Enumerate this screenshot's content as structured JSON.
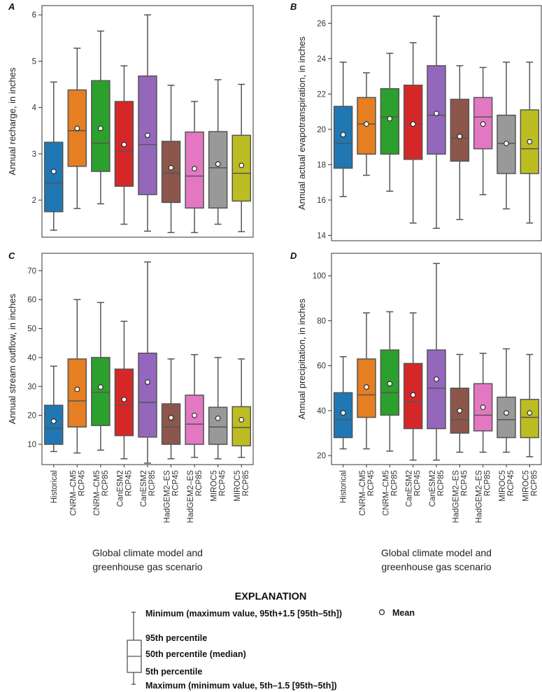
{
  "colors": [
    "#1f77b4",
    "#e67e22",
    "#2ca02c",
    "#d62728",
    "#9467bd",
    "#8c564b",
    "#e377c2",
    "#999999",
    "#bcbd22"
  ],
  "x_axis_label": [
    "Global climate model and",
    "greenhouse gas scenario"
  ],
  "chart_data": [
    {
      "type": "boxplot",
      "panel": "A",
      "ylabel": "Annual recharge, in inches",
      "ylim": [
        1.2,
        6.2
      ],
      "yticks": [
        2,
        3,
        4,
        5,
        6
      ],
      "categories": [
        "Historical",
        "CNRM–CM5 RCP45",
        "CNRM–CM5 RCP85",
        "CanESM2 RCP45",
        "CanESM2 RCP85",
        "HadGEM2–ES RCP45",
        "HadGEM2–ES RCP85",
        "MIROC5 RCP45",
        "MIROC5 RCP85"
      ],
      "whisker_low": [
        1.35,
        1.82,
        1.92,
        1.48,
        1.33,
        1.3,
        1.3,
        1.48,
        1.32
      ],
      "q_low": [
        1.75,
        2.73,
        2.62,
        2.3,
        2.12,
        1.95,
        1.83,
        1.83,
        1.98
      ],
      "median": [
        2.37,
        3.5,
        3.23,
        3.05,
        3.2,
        2.58,
        2.52,
        2.7,
        2.58
      ],
      "q_high": [
        3.25,
        4.38,
        4.58,
        4.13,
        4.68,
        3.27,
        3.47,
        3.48,
        3.4
      ],
      "whisker_high": [
        4.55,
        5.28,
        5.65,
        4.9,
        6.0,
        4.48,
        4.13,
        4.6,
        4.5
      ],
      "mean": [
        2.62,
        3.55,
        3.55,
        3.2,
        3.4,
        2.7,
        2.68,
        2.78,
        2.75
      ]
    },
    {
      "type": "boxplot",
      "panel": "B",
      "ylabel": "Annual actual evapotranspiration, in inches",
      "ylim": [
        13.7,
        27.0
      ],
      "yticks": [
        14,
        16,
        18,
        20,
        22,
        24,
        26
      ],
      "categories": [
        "Historical",
        "CNRM–CM5 RCP45",
        "CNRM–CM5 RCP85",
        "CanESM2 RCP45",
        "CanESM2 RCP85",
        "HadGEM2–ES RCP45",
        "HadGEM2–ES RCP85",
        "MIROC5 RCP45",
        "MIROC5 RCP85"
      ],
      "whisker_low": [
        16.2,
        17.4,
        16.5,
        14.7,
        14.4,
        14.9,
        16.3,
        15.5,
        14.7
      ],
      "q_low": [
        17.8,
        18.6,
        18.6,
        18.3,
        18.6,
        18.2,
        18.9,
        17.5,
        17.5
      ],
      "median": [
        19.2,
        20.3,
        20.7,
        20.3,
        20.8,
        19.5,
        20.7,
        19.2,
        18.9
      ],
      "q_high": [
        21.3,
        21.8,
        22.3,
        22.5,
        23.6,
        21.7,
        21.8,
        20.8,
        21.1
      ],
      "whisker_high": [
        23.8,
        23.2,
        24.3,
        24.9,
        26.4,
        23.6,
        23.5,
        23.8,
        23.8
      ],
      "mean": [
        19.7,
        20.3,
        20.6,
        20.3,
        20.9,
        19.6,
        20.3,
        19.2,
        19.3
      ]
    },
    {
      "type": "boxplot",
      "panel": "C",
      "ylabel": "Annual stream outflow, in inches",
      "ylim": [
        3.0,
        76.0
      ],
      "yticks": [
        10,
        20,
        30,
        40,
        50,
        60,
        70
      ],
      "categories": [
        "Historical",
        "CNRM–CM5 RCP45",
        "CNRM–CM5 RCP85",
        "CanESM2 RCP45",
        "CanESM2 RCP85",
        "HadGEM2–ES RCP45",
        "HadGEM2–ES RCP85",
        "MIROC5 RCP45",
        "MIROC5 RCP85"
      ],
      "whisker_low": [
        7.5,
        7.0,
        8.0,
        5.0,
        3.5,
        5.0,
        5.5,
        5.0,
        5.5
      ],
      "q_low": [
        10.0,
        16.0,
        16.5,
        13.0,
        12.5,
        10.0,
        10.0,
        10.0,
        9.5
      ],
      "median": [
        15.5,
        25.0,
        28.0,
        23.5,
        24.5,
        16.0,
        17.0,
        16.0,
        15.8
      ],
      "q_high": [
        23.5,
        39.5,
        40.0,
        36.0,
        41.5,
        24.0,
        27.0,
        22.8,
        23.0
      ],
      "whisker_high": [
        37.0,
        60.0,
        59.0,
        52.5,
        73.0,
        39.5,
        41.0,
        40.0,
        39.5
      ],
      "mean": [
        18.0,
        29.0,
        29.8,
        25.5,
        31.5,
        19.2,
        20.0,
        19.0,
        18.5
      ]
    },
    {
      "type": "boxplot",
      "panel": "D",
      "ylabel": "Annual precipitation, in inches",
      "ylim": [
        16.0,
        110.0
      ],
      "yticks": [
        20,
        40,
        60,
        80,
        100
      ],
      "categories": [
        "Historical",
        "CNRM–CM5 RCP45",
        "CNRM–CM5 RCP85",
        "CanESM2 RCP45",
        "CanESM2 RCP85",
        "HadGEM2–ES RCP45",
        "HadGEM2–ES RCP85",
        "MIROC5 RCP45",
        "MIROC5 RCP85"
      ],
      "whisker_low": [
        23,
        23,
        22,
        18,
        18,
        21.5,
        21.5,
        21.5,
        19.5
      ],
      "q_low": [
        28,
        37,
        38,
        32,
        32,
        30,
        31,
        28,
        28
      ],
      "median": [
        36,
        47,
        48,
        44,
        50,
        36,
        38,
        36,
        37
      ],
      "q_high": [
        48,
        63,
        67,
        61,
        67,
        50,
        52,
        46,
        45
      ],
      "whisker_high": [
        64,
        83.5,
        84,
        83.5,
        105.5,
        65,
        65.5,
        67.5,
        65
      ],
      "mean": [
        39,
        50.5,
        52,
        47,
        54,
        40,
        41.5,
        39,
        39
      ]
    }
  ],
  "legend": {
    "title": "EXPLANATION",
    "minimum": "Minimum (maximum value, 95th+1.5 [95th–5th])",
    "p95": "95th percentile",
    "p50": "50th percentile (median)",
    "p5": "5th percentile",
    "maximum": "Maximum (minimum value, 5th–1.5 [95th–5th])",
    "mean": "Mean"
  }
}
